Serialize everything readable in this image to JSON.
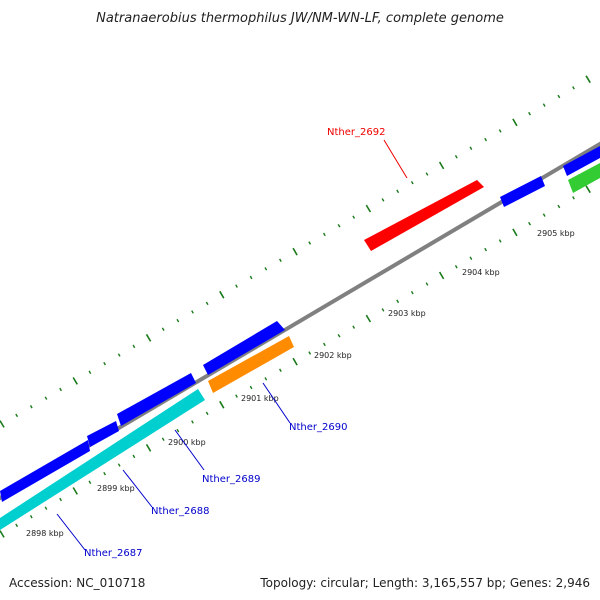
{
  "title": "Natranaerobius thermophilus JW/NM-WN-LF, complete genome",
  "footer": {
    "accession": "Accession: NC_010718",
    "summary": "Topology: circular; Length: 3,165,557 bp; Genes: 2,946"
  },
  "colors": {
    "backbone": "#808080",
    "tick": "#1a7a1a",
    "forward_cds": "#0000ff",
    "reverse_cds": "#00cfcf",
    "highlight_red": "#ff0000",
    "highlight_orange": "#ff8c00",
    "green_gene": "#33cc33",
    "label_blue": "#0000cc",
    "label_red": "#ee0000"
  },
  "ticks": {
    "labels": [
      "2898 kbp",
      "2899 kbp",
      "2900 kbp",
      "2901 kbp",
      "2902 kbp",
      "2903 kbp",
      "2904 kbp",
      "2905 kbp"
    ]
  },
  "gene_labels": {
    "nther_2692": "Nther_2692",
    "nther_2690": "Nther_2690",
    "nther_2689": "Nther_2689",
    "nther_2688": "Nther_2688",
    "nther_2687": "Nther_2687"
  }
}
